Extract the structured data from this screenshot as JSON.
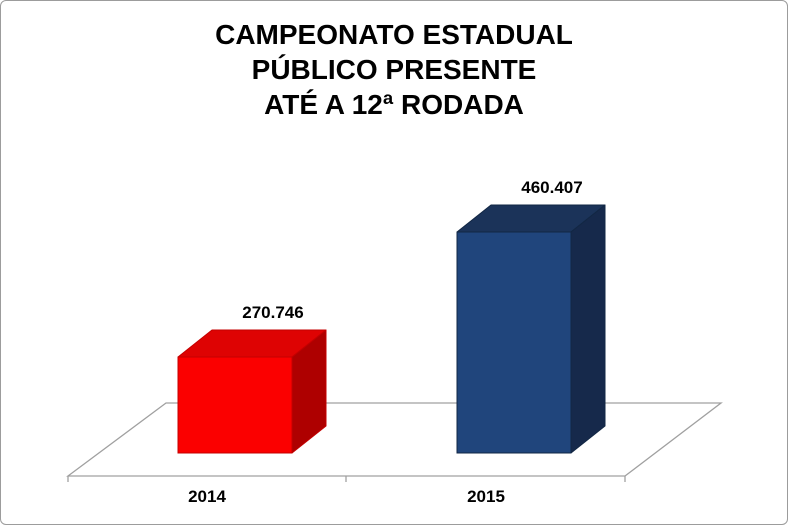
{
  "page": {
    "background": "#ffffff",
    "border_color": "#9c9c9c"
  },
  "chart_data": {
    "type": "bar",
    "style": "3d-column",
    "title": "CAMPEONATO ESTADUAL\nPÚBLICO PRESENTE\nATÉ A 12ª RODADA",
    "xlabel": "",
    "ylabel": "",
    "categories": [
      "2014",
      "2015"
    ],
    "values": [
      270746,
      460407
    ],
    "value_labels": [
      "270.746",
      "460.407"
    ],
    "ylim": [
      125000,
      500000
    ],
    "grid": false,
    "legend": false,
    "value_axis_visible": false,
    "text_color": "#000000",
    "axis_line_color": "#a0a0a0",
    "series_styles": [
      {
        "name": "2014",
        "front": "#fb0000",
        "top": "#de0303",
        "side": "#ae0000",
        "edge": "#c40000"
      },
      {
        "name": "2015",
        "front": "#20457c",
        "top": "#1b3359",
        "side": "#16294b",
        "edge": "#122744"
      }
    ]
  }
}
